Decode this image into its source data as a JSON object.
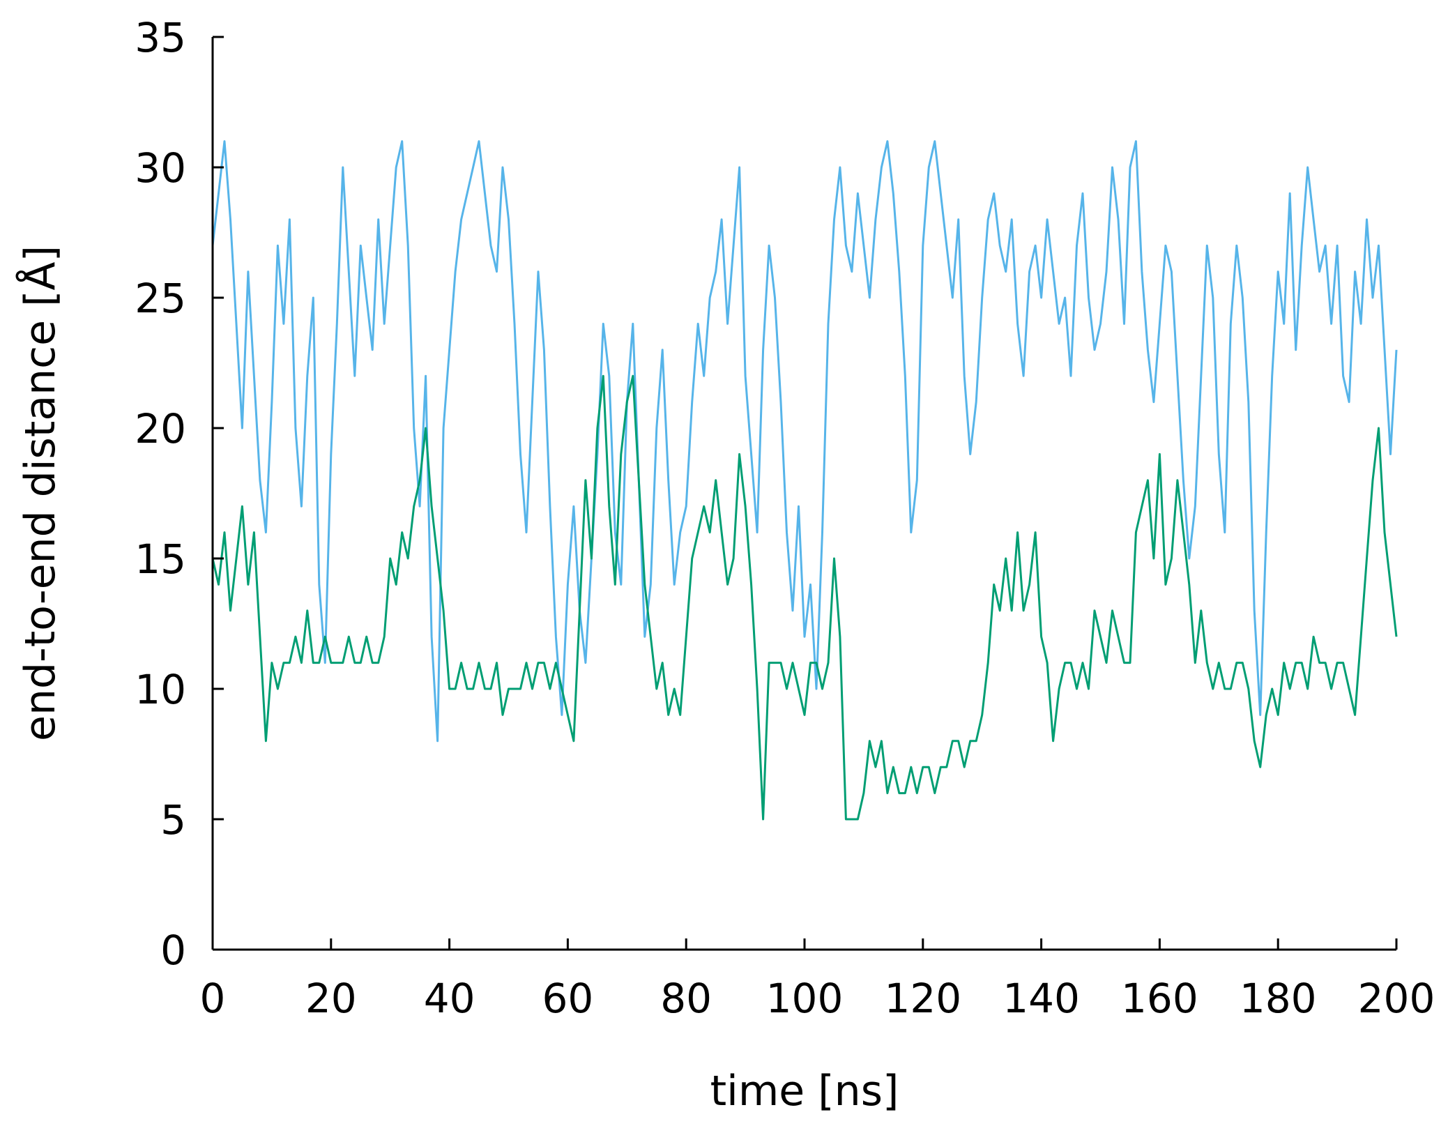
{
  "chart_data": {
    "type": "line",
    "title": "",
    "xlabel": "time [ns]",
    "ylabel": "end-to-end distance [Å]",
    "xlim": [
      0,
      200
    ],
    "ylim": [
      0,
      35
    ],
    "xticks": [
      0,
      20,
      40,
      60,
      80,
      100,
      120,
      140,
      160,
      180,
      200
    ],
    "yticks": [
      0,
      5,
      10,
      15,
      20,
      25,
      30,
      35
    ],
    "xtick_labels": [
      "0",
      "20",
      "40",
      "60",
      "80",
      "100",
      "120",
      "140",
      "160",
      "180",
      "200"
    ],
    "ytick_labels": [
      "0",
      "5",
      "10",
      "15",
      "20",
      "25",
      "30",
      "35"
    ],
    "grid": false,
    "legend": "none",
    "series": [
      {
        "color": "#56b4e9",
        "x": [
          0,
          1,
          2,
          3,
          4,
          5,
          6,
          7,
          8,
          9,
          10,
          11,
          12,
          13,
          14,
          15,
          16,
          17,
          18,
          19,
          20,
          21,
          22,
          23,
          24,
          25,
          26,
          27,
          28,
          29,
          30,
          31,
          32,
          33,
          34,
          35,
          36,
          37,
          38,
          39,
          40,
          41,
          42,
          43,
          44,
          45,
          46,
          47,
          48,
          49,
          50,
          51,
          52,
          53,
          54,
          55,
          56,
          57,
          58,
          59,
          60,
          61,
          62,
          63,
          64,
          65,
          66,
          67,
          68,
          69,
          70,
          71,
          72,
          73,
          74,
          75,
          76,
          77,
          78,
          79,
          80,
          81,
          82,
          83,
          84,
          85,
          86,
          87,
          88,
          89,
          90,
          91,
          92,
          93,
          94,
          95,
          96,
          97,
          98,
          99,
          100,
          101,
          102,
          103,
          104,
          105,
          106,
          107,
          108,
          109,
          110,
          111,
          112,
          113,
          114,
          115,
          116,
          117,
          118,
          119,
          120,
          121,
          122,
          123,
          124,
          125,
          126,
          127,
          128,
          129,
          130,
          131,
          132,
          133,
          134,
          135,
          136,
          137,
          138,
          139,
          140,
          141,
          142,
          143,
          144,
          145,
          146,
          147,
          148,
          149,
          150,
          151,
          152,
          153,
          154,
          155,
          156,
          157,
          158,
          159,
          160,
          161,
          162,
          163,
          164,
          165,
          166,
          167,
          168,
          169,
          170,
          171,
          172,
          173,
          174,
          175,
          176,
          177,
          178,
          179,
          180,
          181,
          182,
          183,
          184,
          185,
          186,
          187,
          188,
          189,
          190,
          191,
          192,
          193,
          194,
          195,
          196,
          197,
          198,
          199,
          200
        ],
        "values": [
          27,
          29,
          31,
          28,
          24,
          20,
          26,
          22,
          18,
          16,
          21,
          27,
          24,
          28,
          20,
          17,
          22,
          25,
          14,
          11,
          19,
          24,
          30,
          26,
          22,
          27,
          25,
          23,
          28,
          24,
          27,
          30,
          31,
          27,
          20,
          17,
          22,
          12,
          8,
          20,
          23,
          26,
          28,
          29,
          30,
          31,
          29,
          27,
          26,
          30,
          28,
          24,
          19,
          16,
          21,
          26,
          23,
          17,
          12,
          9,
          14,
          17,
          13,
          11,
          15,
          19,
          24,
          22,
          16,
          14,
          21,
          24,
          18,
          12,
          14,
          20,
          23,
          18,
          14,
          16,
          17,
          21,
          24,
          22,
          25,
          26,
          28,
          24,
          27,
          30,
          22,
          19,
          16,
          23,
          27,
          25,
          21,
          16,
          13,
          17,
          12,
          14,
          10,
          16,
          24,
          28,
          30,
          27,
          26,
          29,
          27,
          25,
          28,
          30,
          31,
          29,
          26,
          22,
          16,
          18,
          27,
          30,
          31,
          29,
          27,
          25,
          28,
          22,
          19,
          21,
          25,
          28,
          29,
          27,
          26,
          28,
          24,
          22,
          26,
          27,
          25,
          28,
          26,
          24,
          25,
          22,
          27,
          29,
          25,
          23,
          24,
          26,
          30,
          28,
          24,
          30,
          31,
          26,
          23,
          21,
          24,
          27,
          26,
          22,
          18,
          15,
          17,
          22,
          27,
          25,
          19,
          16,
          24,
          27,
          25,
          21,
          13,
          9,
          16,
          22,
          26,
          24,
          29,
          23,
          27,
          30,
          28,
          26,
          27,
          24,
          27,
          22,
          21,
          26,
          24,
          28,
          25,
          27,
          23,
          19,
          23
        ]
      },
      {
        "color": "#009e73",
        "x": [
          0,
          1,
          2,
          3,
          4,
          5,
          6,
          7,
          8,
          9,
          10,
          11,
          12,
          13,
          14,
          15,
          16,
          17,
          18,
          19,
          20,
          21,
          22,
          23,
          24,
          25,
          26,
          27,
          28,
          29,
          30,
          31,
          32,
          33,
          34,
          35,
          36,
          37,
          38,
          39,
          40,
          41,
          42,
          43,
          44,
          45,
          46,
          47,
          48,
          49,
          50,
          51,
          52,
          53,
          54,
          55,
          56,
          57,
          58,
          59,
          60,
          61,
          62,
          63,
          64,
          65,
          66,
          67,
          68,
          69,
          70,
          71,
          72,
          73,
          74,
          75,
          76,
          77,
          78,
          79,
          80,
          81,
          82,
          83,
          84,
          85,
          86,
          87,
          88,
          89,
          90,
          91,
          92,
          93,
          94,
          95,
          96,
          97,
          98,
          99,
          100,
          101,
          102,
          103,
          104,
          105,
          106,
          107,
          108,
          109,
          110,
          111,
          112,
          113,
          114,
          115,
          116,
          117,
          118,
          119,
          120,
          121,
          122,
          123,
          124,
          125,
          126,
          127,
          128,
          129,
          130,
          131,
          132,
          133,
          134,
          135,
          136,
          137,
          138,
          139,
          140,
          141,
          142,
          143,
          144,
          145,
          146,
          147,
          148,
          149,
          150,
          151,
          152,
          153,
          154,
          155,
          156,
          157,
          158,
          159,
          160,
          161,
          162,
          163,
          164,
          165,
          166,
          167,
          168,
          169,
          170,
          171,
          172,
          173,
          174,
          175,
          176,
          177,
          178,
          179,
          180,
          181,
          182,
          183,
          184,
          185,
          186,
          187,
          188,
          189,
          190,
          191,
          192,
          193,
          194,
          195,
          196,
          197,
          198,
          199,
          200
        ],
        "values": [
          15,
          14,
          16,
          13,
          15,
          17,
          14,
          16,
          12,
          8,
          11,
          10,
          11,
          11,
          12,
          11,
          13,
          11,
          11,
          12,
          11,
          11,
          11,
          12,
          11,
          11,
          12,
          11,
          11,
          12,
          15,
          14,
          16,
          15,
          17,
          18,
          20,
          17,
          15,
          13,
          10,
          10,
          11,
          10,
          10,
          11,
          10,
          10,
          11,
          9,
          10,
          10,
          10,
          11,
          10,
          11,
          11,
          10,
          11,
          10,
          9,
          8,
          13,
          18,
          15,
          20,
          22,
          17,
          14,
          19,
          21,
          22,
          18,
          14,
          12,
          10,
          11,
          9,
          10,
          9,
          12,
          15,
          16,
          17,
          16,
          18,
          16,
          14,
          15,
          19,
          17,
          14,
          10,
          5,
          11,
          11,
          11,
          10,
          11,
          10,
          9,
          11,
          11,
          10,
          11,
          15,
          12,
          5,
          5,
          5,
          6,
          8,
          7,
          8,
          6,
          7,
          6,
          6,
          7,
          6,
          7,
          7,
          6,
          7,
          7,
          8,
          8,
          7,
          8,
          8,
          9,
          11,
          14,
          13,
          15,
          13,
          16,
          13,
          14,
          16,
          12,
          11,
          8,
          10,
          11,
          11,
          10,
          11,
          10,
          13,
          12,
          11,
          13,
          12,
          11,
          11,
          16,
          17,
          18,
          15,
          19,
          14,
          15,
          18,
          16,
          14,
          11,
          13,
          11,
          10,
          11,
          10,
          10,
          11,
          11,
          10,
          8,
          7,
          9,
          10,
          9,
          11,
          10,
          11,
          11,
          10,
          12,
          11,
          11,
          10,
          11,
          11,
          10,
          9,
          12,
          15,
          18,
          20,
          16,
          14,
          12
        ]
      }
    ]
  }
}
